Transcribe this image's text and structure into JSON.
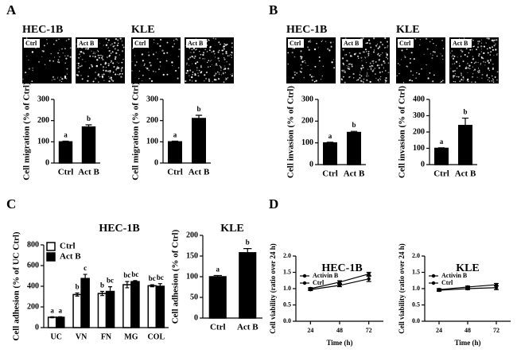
{
  "panel_labels": [
    "A",
    "B",
    "C",
    "D"
  ],
  "chart_data": [
    {
      "type": "bar",
      "title": "HEC-1B",
      "image_labels": [
        "Ctrl",
        "Act B"
      ],
      "ylabel": "Cell migration (% of Ctrl)",
      "categories": [
        "Ctrl",
        "Act B"
      ],
      "values": [
        100,
        170
      ],
      "errors": [
        3,
        10
      ],
      "annotations": [
        "a",
        "b"
      ],
      "color": "#000000",
      "ylim": [
        0,
        300
      ],
      "yticks": [
        0,
        100,
        200,
        300
      ]
    },
    {
      "type": "bar",
      "title": "KLE",
      "image_labels": [
        "Ctrl",
        "Act B"
      ],
      "ylabel": "Cell migration (% of Ctrl)",
      "categories": [
        "Ctrl",
        "Act B"
      ],
      "values": [
        100,
        210
      ],
      "errors": [
        3,
        15
      ],
      "annotations": [
        "a",
        "b"
      ],
      "color": "#000000",
      "ylim": [
        0,
        300
      ],
      "yticks": [
        0,
        100,
        200,
        300
      ]
    },
    {
      "type": "bar",
      "title": "HEC-1B",
      "image_labels": [
        "Ctrl",
        "Act B"
      ],
      "ylabel": "Cell invasion (% of Ctrl)",
      "categories": [
        "Ctrl",
        "Act B"
      ],
      "values": [
        100,
        148
      ],
      "errors": [
        3,
        5
      ],
      "annotations": [
        "a",
        "b"
      ],
      "color": "#000000",
      "ylim": [
        0,
        300
      ],
      "yticks": [
        0,
        100,
        200,
        300
      ]
    },
    {
      "type": "bar",
      "title": "KLE",
      "image_labels": [
        "Ctrl",
        "Act B"
      ],
      "ylabel": "Cell invasion (% of Ctrl)",
      "categories": [
        "Ctrl",
        "Act B"
      ],
      "values": [
        100,
        240
      ],
      "errors": [
        3,
        45
      ],
      "annotations": [
        "a",
        "b"
      ],
      "color": "#000000",
      "ylim": [
        0,
        400
      ],
      "yticks": [
        0,
        100,
        200,
        300,
        400
      ]
    },
    {
      "type": "bar",
      "title": "HEC-1B",
      "ylabel": "Cell adhesion (% of UC Ctrl)",
      "categories": [
        "UC",
        "VN",
        "FN",
        "MG",
        "COL"
      ],
      "series": [
        {
          "name": "Ctrl",
          "color": "#ffffff",
          "values": [
            100,
            320,
            330,
            415,
            405
          ],
          "errors": [
            5,
            15,
            20,
            30,
            10
          ],
          "annotations": [
            "a",
            "b",
            "b",
            "bc",
            "bc"
          ]
        },
        {
          "name": "Act B",
          "color": "#000000",
          "values": [
            100,
            475,
            350,
            445,
            400
          ],
          "errors": [
            5,
            40,
            45,
            10,
            25
          ],
          "annotations": [
            "a",
            "c",
            "bc",
            "bc",
            "bc"
          ]
        }
      ],
      "ylim": [
        0,
        800
      ],
      "yticks": [
        0,
        200,
        400,
        600,
        800
      ],
      "legend": "top-left"
    },
    {
      "type": "bar",
      "title": "KLE",
      "ylabel": "Cell adhesion (% of Ctrl)",
      "categories": [
        "Ctrl",
        "Act B"
      ],
      "values": [
        100,
        158
      ],
      "errors": [
        3,
        10
      ],
      "annotations": [
        "a",
        "b"
      ],
      "color": "#000000",
      "ylim": [
        0,
        200
      ],
      "yticks": [
        0,
        50,
        100,
        150,
        200
      ]
    },
    {
      "type": "line",
      "title": "HEC-1B",
      "xlabel": "Time (h)",
      "ylabel": "Cell viability (ratio over 24 h)",
      "x": [
        24,
        48,
        72
      ],
      "series": [
        {
          "name": "Activin B",
          "color": "#000000",
          "values": [
            1.0,
            1.2,
            1.45
          ],
          "errors": [
            0.03,
            0.04,
            0.05
          ]
        },
        {
          "name": "Ctrl",
          "color": "#000000",
          "values": [
            0.97,
            1.1,
            1.3
          ],
          "errors": [
            0.03,
            0.04,
            0.08
          ]
        }
      ],
      "xlim": [
        12,
        84
      ],
      "xticks": [
        24,
        48,
        72
      ],
      "ylim": [
        0,
        2
      ],
      "yticks": [
        {
          "value": 0,
          "label": "0.0"
        },
        0.5,
        {
          "value": 1,
          "label": "1.0"
        },
        1.5,
        {
          "value": 2,
          "label": "2.0"
        }
      ],
      "legend": "top-left"
    },
    {
      "type": "line",
      "title": "KLE",
      "xlabel": "Time (h)",
      "ylabel": "Cell viability (ratio over 24 h)",
      "x": [
        24,
        48,
        72
      ],
      "series": [
        {
          "name": "Activin B",
          "color": "#000000",
          "values": [
            0.97,
            1.05,
            1.12
          ],
          "errors": [
            0.03,
            0.03,
            0.04
          ]
        },
        {
          "name": "Ctrl",
          "color": "#000000",
          "values": [
            0.95,
            1.0,
            1.03
          ],
          "errors": [
            0.03,
            0.03,
            0.06
          ]
        }
      ],
      "xlim": [
        12,
        84
      ],
      "xticks": [
        24,
        48,
        72
      ],
      "ylim": [
        0,
        2
      ],
      "yticks": [
        {
          "value": 0,
          "label": "0.0"
        },
        0.5,
        {
          "value": 1,
          "label": "1.0"
        },
        1.5,
        {
          "value": 2,
          "label": "2.0"
        }
      ],
      "legend": "top-left"
    }
  ]
}
